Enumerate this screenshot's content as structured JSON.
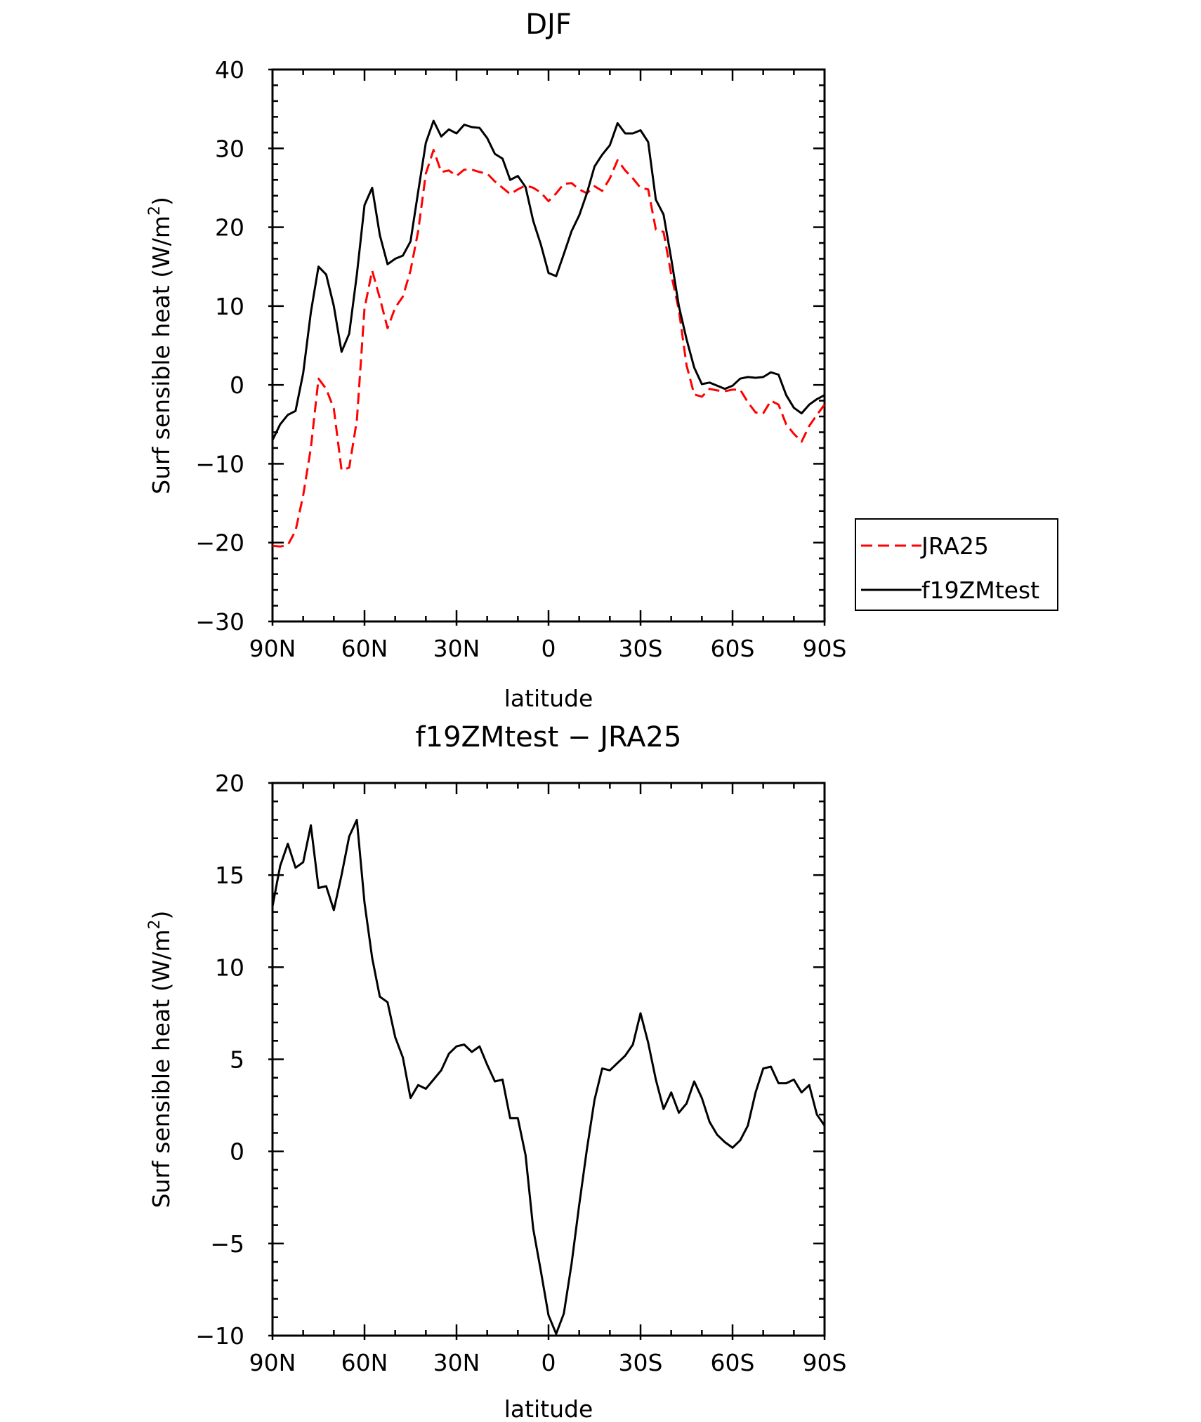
{
  "chart_data": [
    {
      "type": "line",
      "title": "DJF",
      "xlabel": "latitude",
      "ylabel": "Surf sensible heat (W/m²)",
      "ylabel_main": "Surf sensible heat (W/m",
      "ylabel_sup": "2",
      "ylabel_end": ")",
      "x_ticks": [
        {
          "value": -90,
          "label": "90N"
        },
        {
          "value": -60,
          "label": "60N"
        },
        {
          "value": -30,
          "label": "30N"
        },
        {
          "value": 0,
          "label": "0"
        },
        {
          "value": 30,
          "label": "30S"
        },
        {
          "value": 60,
          "label": "60S"
        },
        {
          "value": 90,
          "label": "90S"
        }
      ],
      "y_ticks": [
        {
          "value": 40,
          "label": "40"
        },
        {
          "value": 30,
          "label": "30"
        },
        {
          "value": 20,
          "label": "20"
        },
        {
          "value": 10,
          "label": "10"
        },
        {
          "value": 0,
          "label": "0"
        },
        {
          "value": -10,
          "label": "−10"
        },
        {
          "value": -20,
          "label": "−20"
        },
        {
          "value": -30,
          "label": "−30"
        }
      ],
      "xlim": [
        -90,
        90
      ],
      "ylim": [
        -30,
        40
      ],
      "grid": false,
      "legend_position": "right",
      "series": [
        {
          "name": "JRA25",
          "color": "#ff0000",
          "dash": "dashed",
          "x": [
            -90,
            -87.5,
            -85,
            -82.5,
            -80,
            -77.5,
            -75,
            -72.5,
            -70,
            -67.5,
            -65,
            -62.5,
            -60,
            -57.5,
            -55,
            -52.5,
            -50,
            -47.5,
            -45,
            -42.5,
            -40,
            -37.5,
            -35,
            -32.5,
            -30,
            -27.5,
            -25,
            -22.5,
            -20,
            -17.5,
            -15,
            -12.5,
            -10,
            -7.5,
            -5,
            -2.5,
            0,
            2.5,
            5,
            7.5,
            10,
            12.5,
            15,
            17.5,
            20,
            22.5,
            25,
            27.5,
            30,
            32.5,
            35,
            37.5,
            40,
            42.5,
            45,
            47.5,
            50,
            52.5,
            55,
            57.5,
            60,
            62.5,
            65,
            67.5,
            70,
            72.5,
            75,
            77.5,
            80,
            82.5,
            85,
            87.5,
            90
          ],
          "y": [
            -20.4,
            -20.5,
            -20.3,
            -18.5,
            -14,
            -8,
            0.8,
            -0.5,
            -3,
            -10.8,
            -10.5,
            -4.5,
            9.7,
            14.5,
            11,
            7.2,
            9.8,
            11.2,
            14.5,
            19.5,
            26.8,
            29.8,
            27,
            27.2,
            26.5,
            27.3,
            27.3,
            27,
            26.8,
            25.8,
            25,
            24.2,
            24.8,
            25.3,
            25,
            24.4,
            23.3,
            24.3,
            25.5,
            25.6,
            24.8,
            24.3,
            25.2,
            24.6,
            26.2,
            28.5,
            27.2,
            26.2,
            25,
            24.8,
            19.7,
            19.4,
            14,
            9.5,
            2.5,
            -1.2,
            -1.5,
            -0.5,
            -0.7,
            -0.8,
            -0.6,
            -0.6,
            -2.2,
            -3.5,
            -3.6,
            -2,
            -2.5,
            -5,
            -6.2,
            -7.2,
            -5.2,
            -3.8,
            -2.5
          ]
        },
        {
          "name": "f19ZMtest",
          "color": "#000000",
          "dash": "solid",
          "x": [
            -90,
            -87.5,
            -85,
            -82.5,
            -80,
            -77.5,
            -75,
            -72.5,
            -70,
            -67.5,
            -65,
            -62.5,
            -60,
            -57.5,
            -55,
            -52.5,
            -50,
            -47.5,
            -45,
            -42.5,
            -40,
            -37.5,
            -35,
            -32.5,
            -30,
            -27.5,
            -25,
            -22.5,
            -20,
            -17.5,
            -15,
            -12.5,
            -10,
            -7.5,
            -5,
            -2.5,
            0,
            2.5,
            5,
            7.5,
            10,
            12.5,
            15,
            17.5,
            20,
            22.5,
            25,
            27.5,
            30,
            32.5,
            35,
            37.5,
            40,
            42.5,
            45,
            47.5,
            50,
            52.5,
            55,
            57.5,
            60,
            62.5,
            65,
            67.5,
            70,
            72.5,
            75,
            77.5,
            80,
            82.5,
            85,
            87.5,
            90
          ],
          "y": [
            -7,
            -5,
            -3.8,
            -3.3,
            1.5,
            9.2,
            15,
            14,
            10,
            4.2,
            6.5,
            14,
            22.8,
            25,
            19,
            15.3,
            16,
            16.4,
            18.2,
            24.5,
            30.7,
            33.5,
            31.5,
            32.4,
            31.9,
            33,
            32.7,
            32.6,
            31.3,
            29.3,
            28.7,
            26,
            26.5,
            25.1,
            20.8,
            17.8,
            14.2,
            13.8,
            16.6,
            19.5,
            21.5,
            24.3,
            27.7,
            29.2,
            30.4,
            33.2,
            31.9,
            31.9,
            32.3,
            30.8,
            23.5,
            21.6,
            16,
            10,
            5.8,
            2.2,
            0.1,
            0.3,
            -0.1,
            -0.5,
            -0.1,
            0.8,
            1,
            0.9,
            1,
            1.6,
            1.3,
            -1.3,
            -2.9,
            -3.6,
            -2.5,
            -1.8,
            -1.3
          ]
        }
      ]
    },
    {
      "type": "line",
      "title": "f19ZMtest − JRA25",
      "xlabel": "latitude",
      "ylabel": "Surf sensible heat (W/m²)",
      "ylabel_main": "Surf sensible heat (W/m",
      "ylabel_sup": "2",
      "ylabel_end": ")",
      "x_ticks": [
        {
          "value": -90,
          "label": "90N"
        },
        {
          "value": -60,
          "label": "60N"
        },
        {
          "value": -30,
          "label": "30N"
        },
        {
          "value": 0,
          "label": "0"
        },
        {
          "value": 30,
          "label": "30S"
        },
        {
          "value": 60,
          "label": "60S"
        },
        {
          "value": 90,
          "label": "90S"
        }
      ],
      "y_ticks": [
        {
          "value": 20,
          "label": "20"
        },
        {
          "value": 15,
          "label": "15"
        },
        {
          "value": 10,
          "label": "10"
        },
        {
          "value": 5,
          "label": "5"
        },
        {
          "value": 0,
          "label": "0"
        },
        {
          "value": -5,
          "label": "−5"
        },
        {
          "value": -10,
          "label": "−10"
        }
      ],
      "xlim": [
        -90,
        90
      ],
      "ylim": [
        -10,
        20
      ],
      "grid": false,
      "series": [
        {
          "color": "#000000",
          "dash": "solid",
          "x": [
            -90,
            -87.5,
            -85,
            -82.5,
            -80,
            -77.5,
            -75,
            -72.5,
            -70,
            -67.5,
            -65,
            -62.5,
            -60,
            -57.5,
            -55,
            -52.5,
            -50,
            -47.5,
            -45,
            -42.5,
            -40,
            -37.5,
            -35,
            -32.5,
            -30,
            -27.5,
            -25,
            -22.5,
            -20,
            -17.5,
            -15,
            -12.5,
            -10,
            -7.5,
            -5,
            -2.5,
            0,
            2.5,
            5,
            7.5,
            10,
            12.5,
            15,
            17.5,
            20,
            22.5,
            25,
            27.5,
            30,
            32.5,
            35,
            37.5,
            40,
            42.5,
            45,
            47.5,
            50,
            52.5,
            55,
            57.5,
            60,
            62.5,
            65,
            67.5,
            70,
            72.5,
            75,
            77.5,
            80,
            82.5,
            85,
            87.5,
            90
          ],
          "y": [
            13.3,
            15.5,
            16.7,
            15.4,
            15.7,
            17.7,
            14.3,
            14.4,
            13.1,
            15,
            17.1,
            18,
            13.5,
            10.5,
            8.4,
            8.1,
            6.2,
            5.1,
            2.9,
            3.6,
            3.4,
            3.9,
            4.4,
            5.3,
            5.7,
            5.8,
            5.4,
            5.7,
            4.7,
            3.8,
            3.9,
            1.8,
            1.8,
            -0.2,
            -4.2,
            -6.5,
            -8.9,
            -9.9,
            -8.8,
            -6.1,
            -2.9,
            0.1,
            2.8,
            4.5,
            4.4,
            4.8,
            5.2,
            5.8,
            7.5,
            5.9,
            3.9,
            2.3,
            3.2,
            2.1,
            2.6,
            3.8,
            2.9,
            1.6,
            0.9,
            0.5,
            0.2,
            0.6,
            1.4,
            3.2,
            4.5,
            4.6,
            3.7,
            3.7,
            3.9,
            3.2,
            3.6,
            2,
            1.4
          ]
        }
      ]
    }
  ]
}
